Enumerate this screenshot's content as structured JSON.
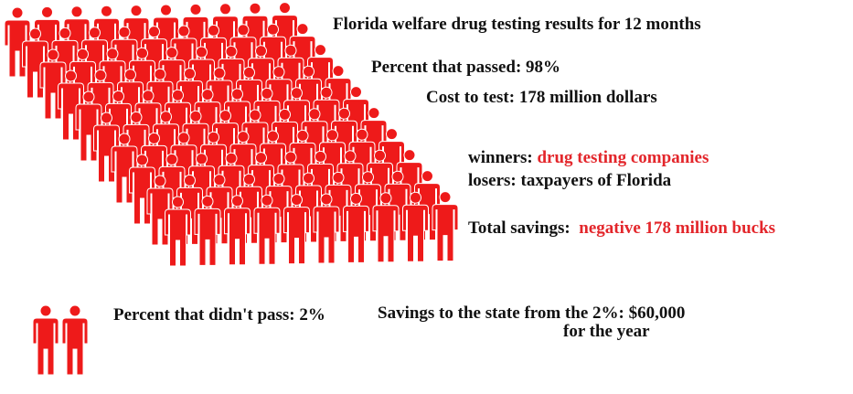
{
  "title": "Florida welfare drug testing results for 12 months",
  "passed": "Percent that passed: 98%",
  "cost": "Cost to test: 178 million dollars",
  "winners_label": "winners:",
  "winners_value": "drug testing companies",
  "losers": "losers: taxpayers of Florida",
  "savings_label": "Total savings:",
  "savings_value": "negative 178 million bucks",
  "failed": "Percent that didn't pass: 2%",
  "state_savings_line1": "Savings to the state from the 2%: $60,000",
  "state_savings_line2": "for the year",
  "colors": {
    "figure": "#ee1a1a",
    "highlight": "#e3262b"
  }
}
